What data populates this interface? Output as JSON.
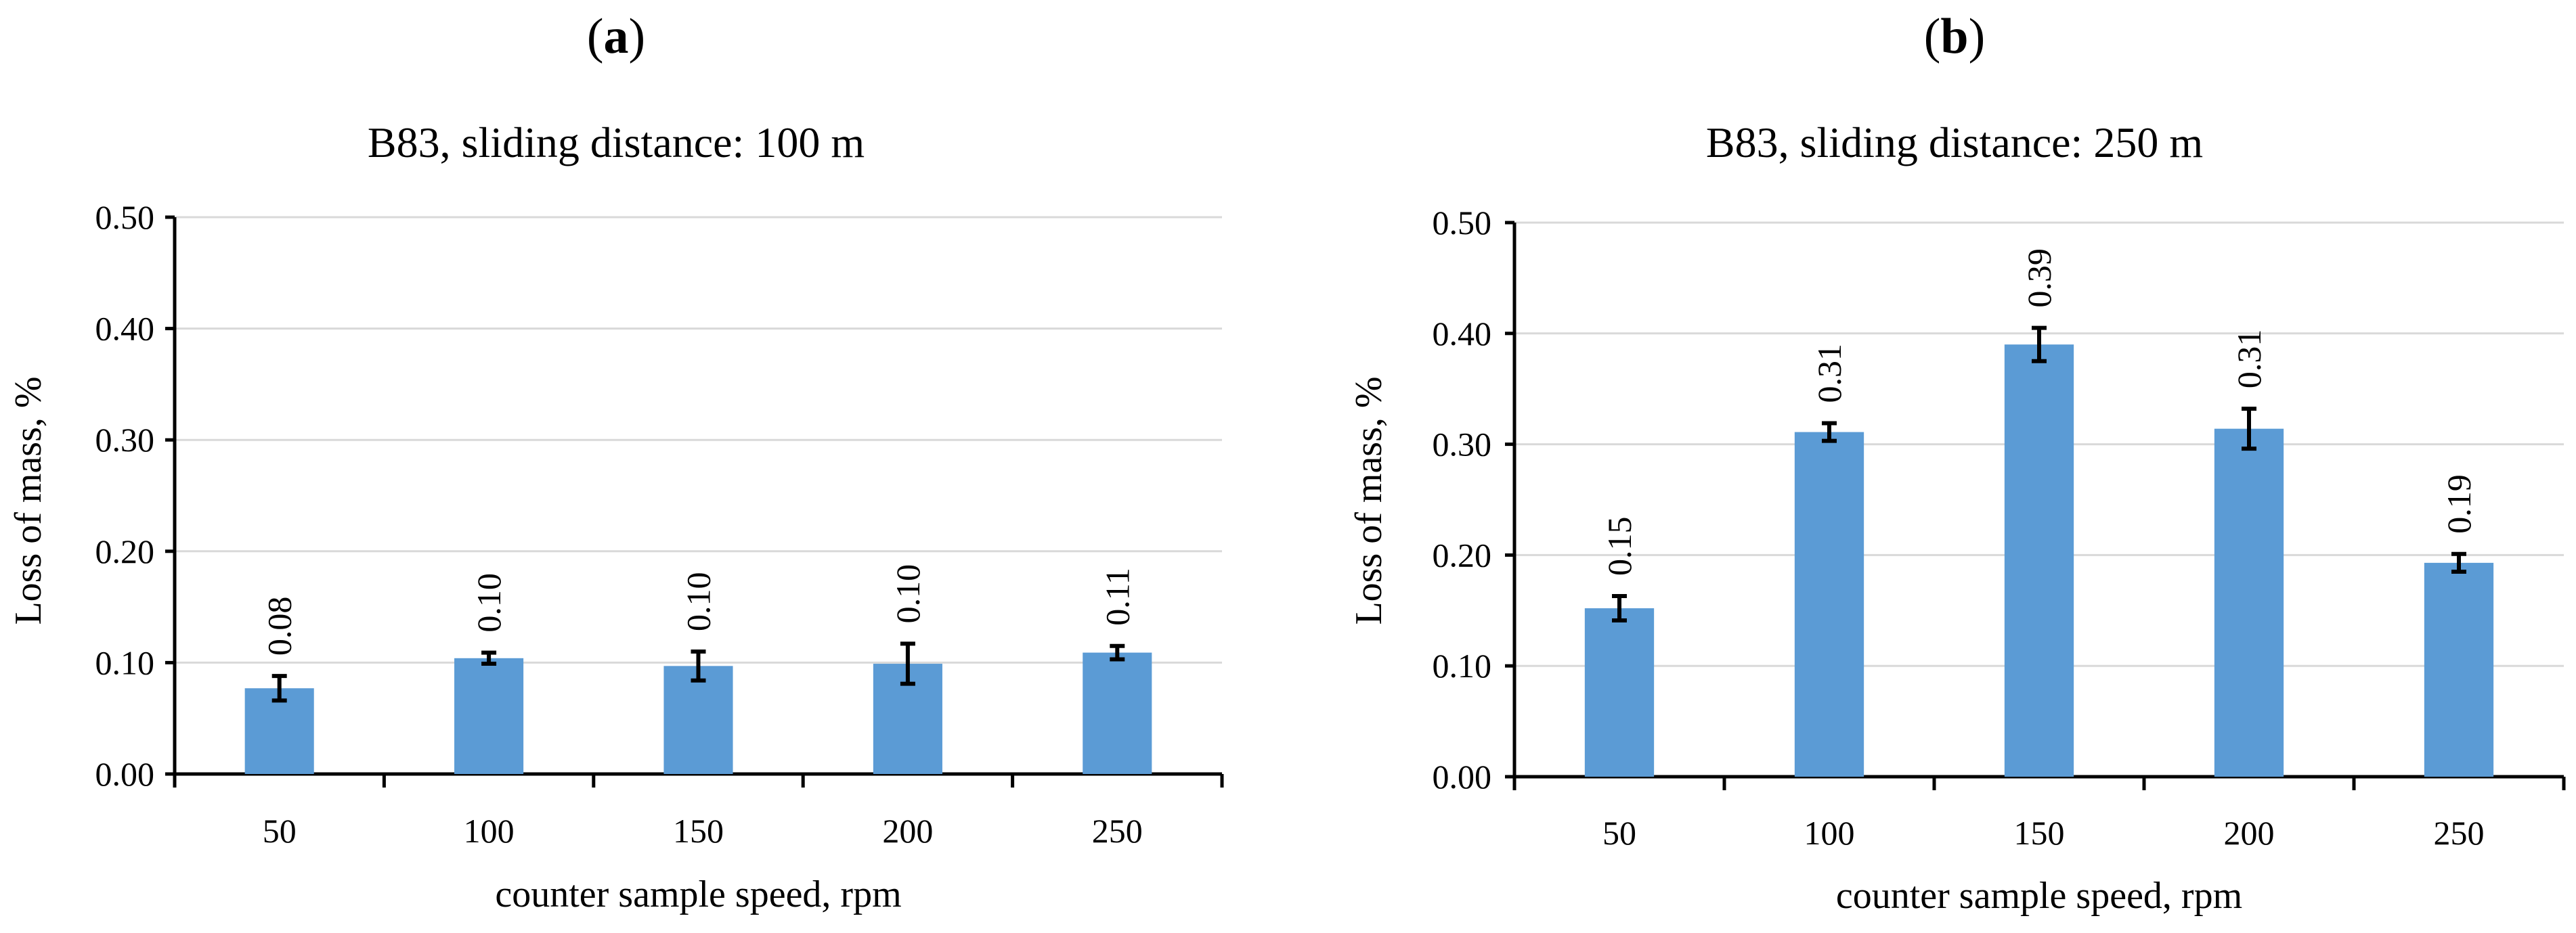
{
  "panels": [
    {
      "label": "a",
      "prefix": "(",
      "suffix": ")"
    },
    {
      "label": "b",
      "prefix": "(",
      "suffix": ")"
    }
  ],
  "colors": {
    "bar": "#5b9bd5",
    "grid": "#d9d9d9",
    "axis": "#000000"
  },
  "chart_data": [
    {
      "type": "bar",
      "title": "B83, sliding distance: 100 m",
      "xlabel": "counter sample speed, rpm",
      "ylabel": "Loss of mass, %",
      "categories": [
        "50",
        "100",
        "150",
        "200",
        "250"
      ],
      "values": [
        0.077,
        0.104,
        0.097,
        0.099,
        0.109
      ],
      "value_labels": [
        "0.08",
        "0.10",
        "0.10",
        "0.10",
        "0.11"
      ],
      "errors": [
        0.011,
        0.005,
        0.013,
        0.018,
        0.006
      ],
      "ylim": [
        0,
        0.5
      ],
      "yticks": [
        0,
        0.1,
        0.2,
        0.3,
        0.4,
        0.5
      ],
      "ytick_labels": [
        "0.00",
        "0.10",
        "0.20",
        "0.30",
        "0.40",
        "0.50"
      ],
      "grid": true,
      "legend": "none"
    },
    {
      "type": "bar",
      "title": "B83, sliding distance: 250 m",
      "xlabel": "counter sample speed, rpm",
      "ylabel": "Loss of mass, %",
      "categories": [
        "50",
        "100",
        "150",
        "200",
        "250"
      ],
      "values": [
        0.152,
        0.311,
        0.39,
        0.314,
        0.193
      ],
      "value_labels": [
        "0.15",
        "0.31",
        "0.39",
        "0.31",
        "0.19"
      ],
      "errors": [
        0.011,
        0.008,
        0.015,
        0.018,
        0.008
      ],
      "ylim": [
        0,
        0.5
      ],
      "yticks": [
        0,
        0.1,
        0.2,
        0.3,
        0.4,
        0.5
      ],
      "ytick_labels": [
        "0.00",
        "0.10",
        "0.20",
        "0.30",
        "0.40",
        "0.50"
      ],
      "grid": true,
      "legend": "none"
    }
  ]
}
